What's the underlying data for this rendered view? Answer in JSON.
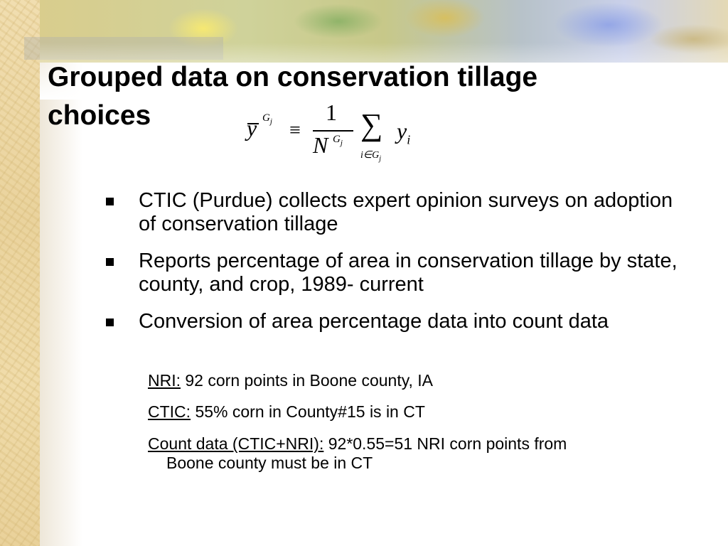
{
  "slide": {
    "title_line1": "Grouped data on conservation tillage",
    "title_line2": "choices",
    "formula": {
      "lhs_var": "y",
      "lhs_sup": "G",
      "lhs_sup_sub": "j",
      "relation": "≡",
      "numerator": "1",
      "denominator": "N",
      "den_sup": "G",
      "den_sup_sub": "j",
      "operator": "∑",
      "op_sub": "i∈G",
      "op_sub_sub": "j",
      "term_var": "y",
      "term_sub": "i"
    },
    "bullets": [
      "CTIC (Purdue) collects expert opinion surveys on adoption of conservation tillage",
      "Reports percentage of area in conservation tillage by state, county, and crop, 1989- current",
      "Conversion of area percentage data into count data"
    ],
    "sub_items": [
      {
        "label": "NRI:",
        "text": "  92 corn points in Boone county, IA"
      },
      {
        "label": "CTIC:",
        "text": " 55% corn in County#15 is in CT"
      },
      {
        "label": "Count data (CTIC+NRI):",
        "text": " 92*0.55=51 NRI corn points from",
        "continuation": "Boone county must be in CT"
      }
    ]
  }
}
